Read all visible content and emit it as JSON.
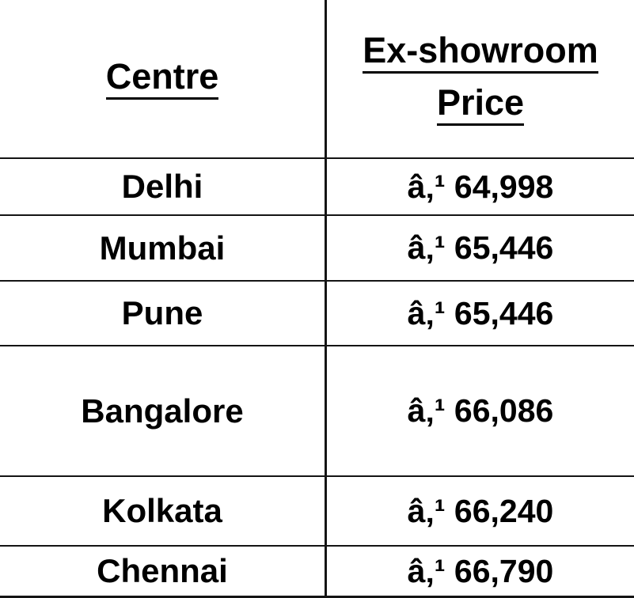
{
  "table": {
    "name": "ex-showroom-price-table",
    "headers": {
      "centre": "Centre",
      "price_line1": "Ex-showroom",
      "price_line2": "Price"
    },
    "currency_prefix_mojibake": "â‚¹",
    "rows": [
      {
        "centre": "Delhi",
        "price": "â‚¹ 64,998"
      },
      {
        "centre": "Mumbai",
        "price": "â‚¹ 65,446"
      },
      {
        "centre": "Pune",
        "price": "â‚¹ 65,446"
      },
      {
        "centre": "Bangalore",
        "price": "â‚¹ 66,086"
      },
      {
        "centre": "Kolkata",
        "price": "â‚¹ 66,240"
      },
      {
        "centre": "Chennai",
        "price": "â‚¹ 66,790"
      }
    ],
    "border_color": "#141414",
    "text_color": "#000000",
    "background_color": "#ffffff"
  }
}
